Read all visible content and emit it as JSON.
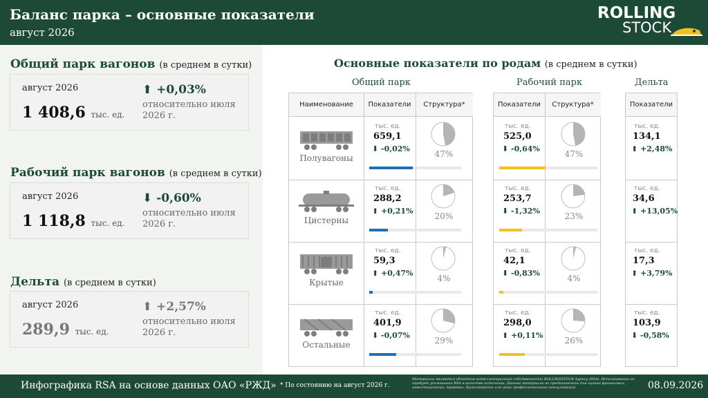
{
  "header": {
    "title": "Баланс парка – основные показатели",
    "subtitle": "август 2026",
    "logo_line1": "ROLLING",
    "logo_line2": "STOCK"
  },
  "summary": [
    {
      "heading": "Общий парк вагонов",
      "note": "(в среднем в сутки)",
      "period": "август 2026",
      "value": "1 408,6",
      "unit": "тыс. ед.",
      "change": "⬆ +0,03%",
      "relative": "относительно июля 2026 г."
    },
    {
      "heading": "Рабочий парк вагонов",
      "note": "(в среднем в сутки)",
      "period": "август 2026",
      "value": "1 118,8",
      "unit": "тыс. ед.",
      "change": "⬇ -0,60%",
      "relative": "относительно июля 2026 г."
    },
    {
      "heading": "Дельта",
      "note": "(в среднем в сутки)",
      "period": "август 2026",
      "value": "289,9",
      "unit": "тыс. ед.",
      "change": "⬆ +2,57%",
      "relative": "относительно июля 2026 г."
    }
  ],
  "main": {
    "title": "Основные показатели по родам",
    "note": "(в среднем в сутки)",
    "groups": {
      "total": "Общий парк",
      "working": "Рабочий парк",
      "delta": "Дельта"
    },
    "headers": {
      "name": "Наименование",
      "indicators": "Показатели",
      "structure": "Структура*"
    },
    "unit": "тыс. ед."
  },
  "chart_data": {
    "type": "table",
    "columns": [
      "Наименование",
      "Общий парк: Показатели",
      "Общий парк: Структура*",
      "Рабочий парк: Показатели",
      "Рабочий парк: Структура*",
      "Дельта: Показатели"
    ],
    "rows": [
      {
        "name": "Полувагоны",
        "total_value": "659,1",
        "total_change": "⬇ -0,02%",
        "total_share": 47,
        "working_value": "525,0",
        "working_change": "⬇ -0,64%",
        "working_share": 47,
        "delta_value": "134,1",
        "delta_change": "⬆ +2,48%"
      },
      {
        "name": "Цистерны",
        "total_value": "288,2",
        "total_change": "⬆ +0,21%",
        "total_share": 20,
        "working_value": "253,7",
        "working_change": "⬇ -1,32%",
        "working_share": 23,
        "delta_value": "34,6",
        "delta_change": "⬆ +13,05%"
      },
      {
        "name": "Крытые",
        "total_value": "59,3",
        "total_change": "⬆ +0,47%",
        "total_share": 4,
        "working_value": "42,1",
        "working_change": "⬇ -0,83%",
        "working_share": 4,
        "delta_value": "17,3",
        "delta_change": "⬆ +3,79%"
      },
      {
        "name": "Остальные",
        "total_value": "401,9",
        "total_change": "⬇ -0,07%",
        "total_share": 29,
        "working_value": "298,0",
        "working_change": "⬆ +0,11%",
        "working_share": 26,
        "delta_value": "103,9",
        "delta_change": "⬇ -0,58%"
      }
    ]
  },
  "footer": {
    "source": "Инфографика RSA на основе данных ОАО «РЖД»",
    "footnote": "* По состоянию на август 2026 г.",
    "legal": "Материалы являются объектом интеллектуальной собственности ROLLINGSTOCK Agency (RSA). Использование их требует упоминания RSA в качестве источника. Данные материалы не предназначены для оценки финансовых, инвестиционных, правовых, бухгалтерских или иных профессиональных консультаций",
    "date": "08.09.2026"
  },
  "colors": {
    "header_bg": "#1d4a36",
    "total_bar": "#1f6fb8",
    "working_bar": "#f2c11e",
    "pie_fill": "#b5b5b5"
  },
  "icons": [
    "gondola-car-icon",
    "tank-car-icon",
    "covered-wagon-icon",
    "other-wagon-icon",
    "train-logo-icon"
  ]
}
